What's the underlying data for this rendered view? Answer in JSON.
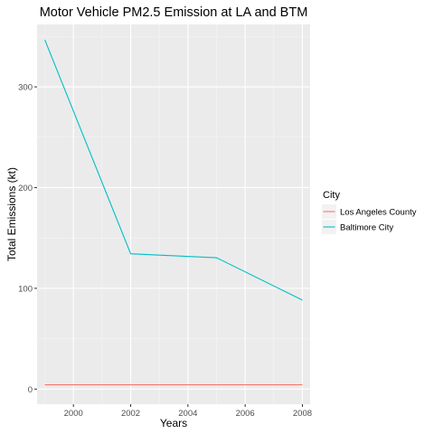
{
  "chart_data": {
    "type": "line",
    "title": "Motor Vehicle PM2.5 Emission at LA and BTM",
    "xlabel": "Years",
    "ylabel": "Total Emissions (kt)",
    "x": [
      1999,
      2002,
      2005,
      2008
    ],
    "xlim": [
      1998.73,
      2008.27
    ],
    "ylim": [
      -15,
      362
    ],
    "xticks": [
      2000,
      2002,
      2004,
      2006,
      2008
    ],
    "yticks": [
      0,
      100,
      200,
      300
    ],
    "grid": true,
    "legend": {
      "title": "City",
      "position": "right"
    },
    "series": [
      {
        "name": "Los Angeles County",
        "color": "#F8766D",
        "values": [
          4.2,
          4.2,
          4.2,
          4.2
        ]
      },
      {
        "name": "Baltimore City",
        "color": "#00BFC4",
        "values": [
          346.8,
          134.3,
          130.4,
          88.3
        ]
      }
    ]
  },
  "colors": {
    "panel_background": "#EBEBEB",
    "major_grid": "#FFFFFF",
    "minor_grid": "#F5F5F5",
    "tick_text": "#4D4D4D"
  }
}
